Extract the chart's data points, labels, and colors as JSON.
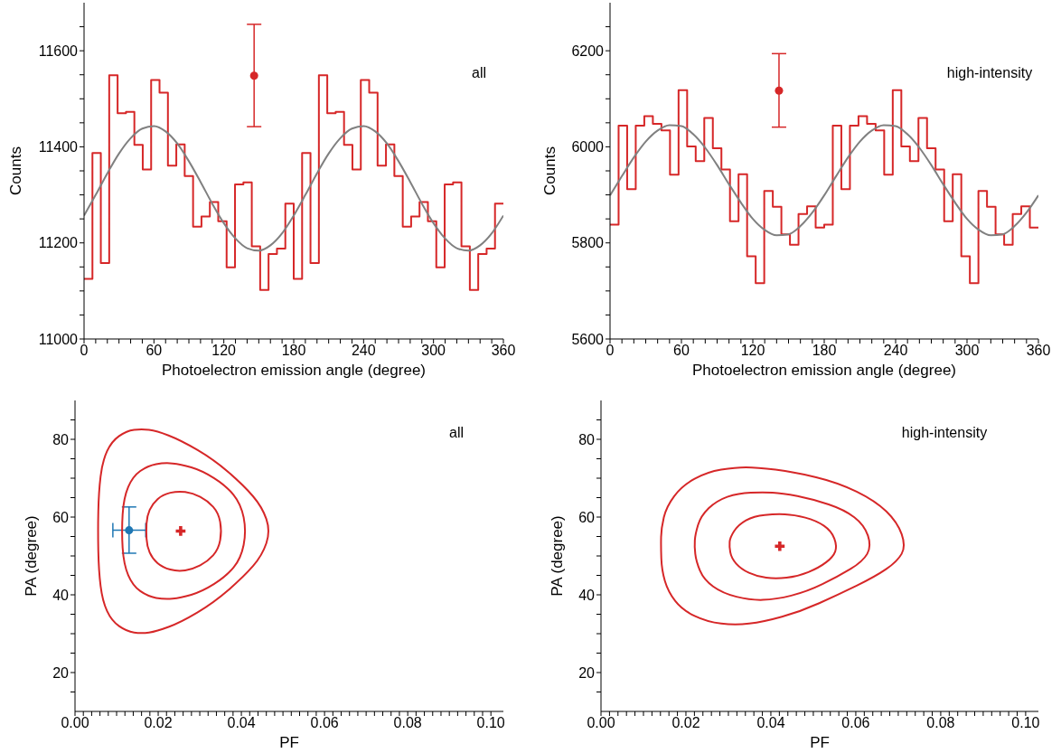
{
  "chart_data": [
    {
      "type": "histogram",
      "xlabel": "Photoelectron emission angle (degree)",
      "ylabel": "Counts",
      "annotations": [
        "all"
      ],
      "xlim": [
        0,
        360
      ],
      "ylim": [
        11000,
        11700
      ],
      "xticks": [
        0,
        {
          "value": 10,
          "label": null
        },
        {
          "value": 20,
          "label": null
        },
        {
          "value": 30,
          "label": null
        },
        {
          "value": 40,
          "label": null
        },
        {
          "value": 50,
          "label": null
        },
        60,
        {
          "value": 70,
          "label": null
        },
        {
          "value": 80,
          "label": null
        },
        {
          "value": 90,
          "label": null
        },
        {
          "value": 100,
          "label": null
        },
        {
          "value": 110,
          "label": null
        },
        120,
        {
          "value": 130,
          "label": null
        },
        {
          "value": 140,
          "label": null
        },
        {
          "value": 150,
          "label": null
        },
        {
          "value": 160,
          "label": null
        },
        {
          "value": 170,
          "label": null
        },
        180,
        {
          "value": 190,
          "label": null
        },
        {
          "value": 200,
          "label": null
        },
        {
          "value": 210,
          "label": null
        },
        {
          "value": 220,
          "label": null
        },
        {
          "value": 230,
          "label": null
        },
        240,
        {
          "value": 250,
          "label": null
        },
        {
          "value": 260,
          "label": null
        },
        {
          "value": 270,
          "label": null
        },
        {
          "value": 280,
          "label": null
        },
        {
          "value": 290,
          "label": null
        },
        300,
        {
          "value": 310,
          "label": null
        },
        {
          "value": 320,
          "label": null
        },
        {
          "value": 330,
          "label": null
        },
        {
          "value": 340,
          "label": null
        },
        {
          "value": 350,
          "label": null
        },
        360
      ],
      "yticks": [
        11000,
        {
          "value": 11050,
          "label": null
        },
        {
          "value": 11100,
          "label": null
        },
        {
          "value": 11150,
          "label": null
        },
        11200,
        {
          "value": 11250,
          "label": null
        },
        {
          "value": 11300,
          "label": null
        },
        {
          "value": 11350,
          "label": null
        },
        11400,
        {
          "value": 11450,
          "label": null
        },
        {
          "value": 11500,
          "label": null
        },
        {
          "value": 11550,
          "label": null
        },
        11600,
        {
          "value": 11650,
          "label": null
        }
      ],
      "series": [
        {
          "color": "#d62728",
          "bins": [
            0,
            7.2,
            14.4,
            21.6,
            28.8,
            36,
            43.2,
            50.4,
            57.6,
            64.8,
            72,
            79.2,
            86.4,
            93.6,
            100.8,
            108,
            115.2,
            122.4,
            129.6,
            136.8,
            144,
            151.2,
            158.4,
            165.6,
            172.8,
            180,
            187.2,
            194.4,
            201.6,
            208.8,
            216,
            223.2,
            230.4,
            237.6,
            244.8,
            252,
            259.2,
            266.4,
            273.6,
            280.8,
            288,
            295.2,
            302.4,
            309.6,
            316.8,
            324,
            331.2,
            338.4,
            345.6,
            352.8,
            360
          ],
          "values": [
            11125,
            11387,
            11158,
            11549,
            11470,
            11473,
            11404,
            11353,
            11539,
            11513,
            11361,
            11405,
            11339,
            11234,
            11255,
            11285,
            11245,
            11149,
            11322,
            11326,
            11193,
            11102,
            11177,
            11188,
            11282,
            11125,
            11387,
            11158,
            11549,
            11470,
            11473,
            11404,
            11353,
            11539,
            11513,
            11361,
            11405,
            11339,
            11234,
            11255,
            11285,
            11245,
            11149,
            11322,
            11326,
            11193,
            11102,
            11177,
            11188,
            11282
          ]
        },
        {
          "type": "line",
          "color": "#808080",
          "x": [
            0,
            10,
            20,
            30,
            40,
            50,
            60,
            70,
            80,
            90,
            100,
            110,
            120,
            130,
            140,
            150,
            160,
            170,
            180,
            190,
            200,
            210,
            220,
            230,
            240,
            250,
            260,
            270,
            280,
            290,
            300,
            310,
            320,
            330,
            340,
            350,
            360
          ],
          "values": [
            11257,
            11300,
            11345,
            11386,
            11418,
            11438,
            11443,
            11432,
            11407,
            11370,
            11327,
            11282,
            11241,
            11209,
            11189,
            11184,
            11195,
            11220,
            11257,
            11300,
            11345,
            11386,
            11418,
            11438,
            11443,
            11432,
            11407,
            11370,
            11327,
            11282,
            11241,
            11209,
            11189,
            11184,
            11195,
            11220,
            11257
          ]
        },
        {
          "type": "scatter",
          "color": "#d62728",
          "marker": "circle",
          "x": [
            146
          ],
          "values": [
            11548
          ],
          "errors": [
            [
              11442,
              11655
            ]
          ]
        }
      ]
    },
    {
      "type": "histogram",
      "xlabel": "Photoelectron emission angle (degree)",
      "ylabel": "Counts",
      "annotations": [
        "high-intensity"
      ],
      "xlim": [
        0,
        360
      ],
      "ylim": [
        5600,
        6300
      ],
      "xticks": [
        0,
        {
          "value": 10,
          "label": null
        },
        {
          "value": 20,
          "label": null
        },
        {
          "value": 30,
          "label": null
        },
        {
          "value": 40,
          "label": null
        },
        {
          "value": 50,
          "label": null
        },
        60,
        {
          "value": 70,
          "label": null
        },
        {
          "value": 80,
          "label": null
        },
        {
          "value": 90,
          "label": null
        },
        {
          "value": 100,
          "label": null
        },
        {
          "value": 110,
          "label": null
        },
        120,
        {
          "value": 130,
          "label": null
        },
        {
          "value": 140,
          "label": null
        },
        {
          "value": 150,
          "label": null
        },
        {
          "value": 160,
          "label": null
        },
        {
          "value": 170,
          "label": null
        },
        180,
        {
          "value": 190,
          "label": null
        },
        {
          "value": 200,
          "label": null
        },
        {
          "value": 210,
          "label": null
        },
        {
          "value": 220,
          "label": null
        },
        {
          "value": 230,
          "label": null
        },
        240,
        {
          "value": 250,
          "label": null
        },
        {
          "value": 260,
          "label": null
        },
        {
          "value": 270,
          "label": null
        },
        {
          "value": 280,
          "label": null
        },
        {
          "value": 290,
          "label": null
        },
        300,
        {
          "value": 310,
          "label": null
        },
        {
          "value": 320,
          "label": null
        },
        {
          "value": 330,
          "label": null
        },
        {
          "value": 340,
          "label": null
        },
        {
          "value": 350,
          "label": null
        },
        360
      ],
      "yticks": [
        5600,
        {
          "value": 5650,
          "label": null
        },
        {
          "value": 5700,
          "label": null
        },
        {
          "value": 5750,
          "label": null
        },
        5800,
        {
          "value": 5850,
          "label": null
        },
        {
          "value": 5900,
          "label": null
        },
        {
          "value": 5950,
          "label": null
        },
        6000,
        {
          "value": 6050,
          "label": null
        },
        {
          "value": 6100,
          "label": null
        },
        {
          "value": 6150,
          "label": null
        },
        6200,
        {
          "value": 6250,
          "label": null
        }
      ],
      "series": [
        {
          "color": "#d62728",
          "bins": [
            0,
            7.2,
            14.4,
            21.6,
            28.8,
            36,
            43.2,
            50.4,
            57.6,
            64.8,
            72,
            79.2,
            86.4,
            93.6,
            100.8,
            108,
            115.2,
            122.4,
            129.6,
            136.8,
            144,
            151.2,
            158.4,
            165.6,
            172.8,
            180,
            187.2,
            194.4,
            201.6,
            208.8,
            216,
            223.2,
            230.4,
            237.6,
            244.8,
            252,
            259.2,
            266.4,
            273.6,
            280.8,
            288,
            295.2,
            302.4,
            309.6,
            316.8,
            324,
            331.2,
            338.4,
            345.6,
            352.8,
            360
          ],
          "values": [
            5838,
            6044,
            5912,
            6044,
            6064,
            6048,
            6034,
            5942,
            6118,
            6001,
            5970,
            6060,
            5997,
            5953,
            5845,
            5943,
            5772,
            5716,
            5908,
            5875,
            5818,
            5796,
            5860,
            5876,
            5832,
            5838,
            6044,
            5912,
            6044,
            6064,
            6048,
            6034,
            5942,
            6118,
            6001,
            5970,
            6060,
            5997,
            5953,
            5845,
            5943,
            5772,
            5716,
            5908,
            5875,
            5818,
            5796,
            5860,
            5876,
            5832
          ]
        },
        {
          "type": "line",
          "color": "#808080",
          "x": [
            0,
            10,
            20,
            30,
            40,
            50,
            60,
            70,
            80,
            90,
            100,
            110,
            120,
            130,
            140,
            150,
            160,
            170,
            180,
            190,
            200,
            210,
            220,
            230,
            240,
            250,
            260,
            270,
            280,
            290,
            300,
            310,
            320,
            330,
            340,
            350,
            360
          ],
          "values": [
            5899,
            5939,
            5978,
            6011,
            6034,
            6045,
            6043,
            6026,
            5998,
            5962,
            5922,
            5884,
            5850,
            5827,
            5816,
            5818,
            5835,
            5863,
            5899,
            5939,
            5978,
            6011,
            6034,
            6045,
            6043,
            6026,
            5998,
            5962,
            5922,
            5884,
            5850,
            5827,
            5816,
            5818,
            5835,
            5863,
            5899
          ]
        },
        {
          "type": "scatter",
          "color": "#d62728",
          "marker": "circle",
          "x": [
            142
          ],
          "values": [
            6117
          ],
          "errors": [
            [
              6041,
              6194
            ]
          ]
        }
      ]
    },
    {
      "type": "scatter",
      "xlabel": "PF",
      "ylabel": "PA (degree)",
      "annotations": [
        "all"
      ],
      "xlim": [
        0,
        0.103
      ],
      "ylim": [
        10,
        90
      ],
      "xticks": [
        {
          "value": 0,
          "label": "0.00"
        },
        {
          "value": 0.002,
          "label": null
        },
        {
          "value": 0.004,
          "label": null
        },
        {
          "value": 0.006,
          "label": null
        },
        {
          "value": 0.008,
          "label": null
        },
        {
          "value": 0.01,
          "label": null
        },
        {
          "value": 0.012,
          "label": null
        },
        {
          "value": 0.014,
          "label": null
        },
        {
          "value": 0.016,
          "label": null
        },
        {
          "value": 0.018,
          "label": null
        },
        {
          "value": 0.02,
          "label": "0.02"
        },
        {
          "value": 0.022,
          "label": null
        },
        {
          "value": 0.024,
          "label": null
        },
        {
          "value": 0.026,
          "label": null
        },
        {
          "value": 0.028,
          "label": null
        },
        {
          "value": 0.03,
          "label": null
        },
        {
          "value": 0.032,
          "label": null
        },
        {
          "value": 0.034,
          "label": null
        },
        {
          "value": 0.036,
          "label": null
        },
        {
          "value": 0.038,
          "label": null
        },
        {
          "value": 0.04,
          "label": "0.04"
        },
        {
          "value": 0.042,
          "label": null
        },
        {
          "value": 0.044,
          "label": null
        },
        {
          "value": 0.046,
          "label": null
        },
        {
          "value": 0.048,
          "label": null
        },
        {
          "value": 0.05,
          "label": null
        },
        {
          "value": 0.052,
          "label": null
        },
        {
          "value": 0.054,
          "label": null
        },
        {
          "value": 0.056,
          "label": null
        },
        {
          "value": 0.058,
          "label": null
        },
        {
          "value": 0.06,
          "label": "0.06"
        },
        {
          "value": 0.062,
          "label": null
        },
        {
          "value": 0.064,
          "label": null
        },
        {
          "value": 0.066,
          "label": null
        },
        {
          "value": 0.068,
          "label": null
        },
        {
          "value": 0.07,
          "label": null
        },
        {
          "value": 0.072,
          "label": null
        },
        {
          "value": 0.074,
          "label": null
        },
        {
          "value": 0.076,
          "label": null
        },
        {
          "value": 0.078,
          "label": null
        },
        {
          "value": 0.08,
          "label": "0.08"
        },
        {
          "value": 0.082,
          "label": null
        },
        {
          "value": 0.084,
          "label": null
        },
        {
          "value": 0.086,
          "label": null
        },
        {
          "value": 0.088,
          "label": null
        },
        {
          "value": 0.09,
          "label": null
        },
        {
          "value": 0.092,
          "label": null
        },
        {
          "value": 0.094,
          "label": null
        },
        {
          "value": 0.096,
          "label": null
        },
        {
          "value": 0.098,
          "label": null
        },
        {
          "value": 0.1,
          "label": "0.10"
        }
      ],
      "yticks": [
        {
          "value": 15,
          "label": null
        },
        20,
        {
          "value": 25,
          "label": null
        },
        {
          "value": 30,
          "label": null
        },
        {
          "value": 35,
          "label": null
        },
        40,
        {
          "value": 45,
          "label": null
        },
        {
          "value": 50,
          "label": null
        },
        {
          "value": 55,
          "label": null
        },
        60,
        {
          "value": 65,
          "label": null
        },
        {
          "value": 70,
          "label": null
        },
        {
          "value": 75,
          "label": null
        },
        80,
        {
          "value": 85,
          "label": null
        }
      ],
      "series": [
        {
          "color": "#d62728",
          "marker": "cross",
          "x": [
            0.0254
          ],
          "values": [
            56.4
          ]
        },
        {
          "color": "#1f77b4",
          "marker": "circle",
          "x": [
            0.013
          ],
          "values": [
            56.6
          ],
          "errors": [
            [
              50.7,
              62.6
            ]
          ],
          "xerrors": [
            [
              0.0091,
              0.017
            ]
          ]
        }
      ]
    },
    {
      "type": "scatter",
      "xlabel": "PF",
      "ylabel": "PA (degree)",
      "annotations": [
        "high-intensity"
      ],
      "xlim": [
        0,
        0.103
      ],
      "ylim": [
        10,
        90
      ],
      "xticks": [
        {
          "value": 0,
          "label": "0.00"
        },
        {
          "value": 0.002,
          "label": null
        },
        {
          "value": 0.004,
          "label": null
        },
        {
          "value": 0.006,
          "label": null
        },
        {
          "value": 0.008,
          "label": null
        },
        {
          "value": 0.01,
          "label": null
        },
        {
          "value": 0.012,
          "label": null
        },
        {
          "value": 0.014,
          "label": null
        },
        {
          "value": 0.016,
          "label": null
        },
        {
          "value": 0.018,
          "label": null
        },
        {
          "value": 0.02,
          "label": "0.02"
        },
        {
          "value": 0.022,
          "label": null
        },
        {
          "value": 0.024,
          "label": null
        },
        {
          "value": 0.026,
          "label": null
        },
        {
          "value": 0.028,
          "label": null
        },
        {
          "value": 0.03,
          "label": null
        },
        {
          "value": 0.032,
          "label": null
        },
        {
          "value": 0.034,
          "label": null
        },
        {
          "value": 0.036,
          "label": null
        },
        {
          "value": 0.038,
          "label": null
        },
        {
          "value": 0.04,
          "label": "0.04"
        },
        {
          "value": 0.042,
          "label": null
        },
        {
          "value": 0.044,
          "label": null
        },
        {
          "value": 0.046,
          "label": null
        },
        {
          "value": 0.048,
          "label": null
        },
        {
          "value": 0.05,
          "label": null
        },
        {
          "value": 0.052,
          "label": null
        },
        {
          "value": 0.054,
          "label": null
        },
        {
          "value": 0.056,
          "label": null
        },
        {
          "value": 0.058,
          "label": null
        },
        {
          "value": 0.06,
          "label": "0.06"
        },
        {
          "value": 0.062,
          "label": null
        },
        {
          "value": 0.064,
          "label": null
        },
        {
          "value": 0.066,
          "label": null
        },
        {
          "value": 0.068,
          "label": null
        },
        {
          "value": 0.07,
          "label": null
        },
        {
          "value": 0.072,
          "label": null
        },
        {
          "value": 0.074,
          "label": null
        },
        {
          "value": 0.076,
          "label": null
        },
        {
          "value": 0.078,
          "label": null
        },
        {
          "value": 0.08,
          "label": "0.08"
        },
        {
          "value": 0.082,
          "label": null
        },
        {
          "value": 0.084,
          "label": null
        },
        {
          "value": 0.086,
          "label": null
        },
        {
          "value": 0.088,
          "label": null
        },
        {
          "value": 0.09,
          "label": null
        },
        {
          "value": 0.092,
          "label": null
        },
        {
          "value": 0.094,
          "label": null
        },
        {
          "value": 0.096,
          "label": null
        },
        {
          "value": 0.098,
          "label": null
        },
        {
          "value": 0.1,
          "label": "0.10"
        }
      ],
      "yticks": [
        {
          "value": 15,
          "label": null
        },
        20,
        {
          "value": 25,
          "label": null
        },
        {
          "value": 30,
          "label": null
        },
        {
          "value": 35,
          "label": null
        },
        40,
        {
          "value": 45,
          "label": null
        },
        {
          "value": 50,
          "label": null
        },
        {
          "value": 55,
          "label": null
        },
        60,
        {
          "value": 65,
          "label": null
        },
        {
          "value": 70,
          "label": null
        },
        {
          "value": 75,
          "label": null
        },
        80,
        {
          "value": 85,
          "label": null
        }
      ],
      "series": [
        {
          "color": "#d62728",
          "marker": "cross",
          "x": [
            0.0421
          ],
          "values": [
            52.5
          ]
        }
      ]
    }
  ]
}
